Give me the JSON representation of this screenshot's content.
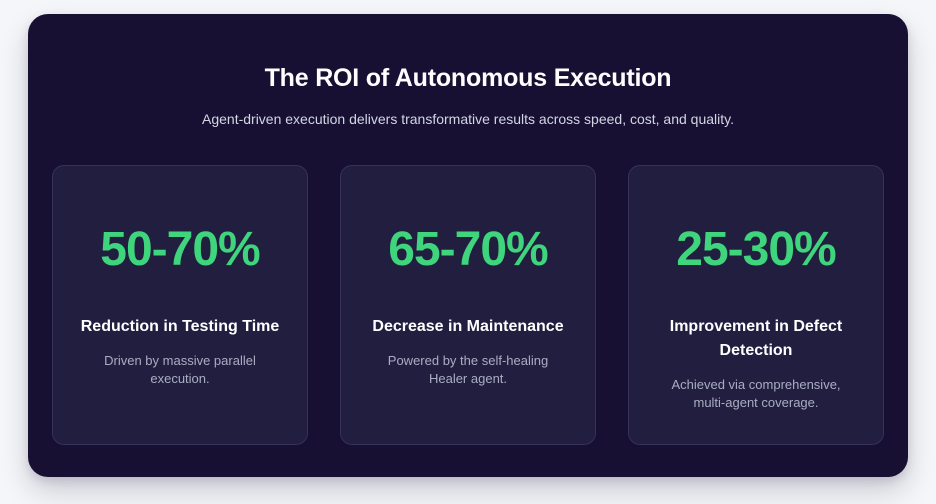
{
  "theme": {
    "page_background": "#f5f6f9",
    "panel_background": "#171033",
    "card_background": "#221e40",
    "card_border": "#37325a",
    "accent_green": "#3ed57c",
    "title_color": "#ffffff",
    "subtitle_color": "#d3d6e2",
    "body_color": "#a9adc2"
  },
  "header": {
    "title": "The ROI of Autonomous Execution",
    "subtitle": "Agent-driven execution delivers transformative results across speed, cost, and quality."
  },
  "stats": [
    {
      "value": "50-70%",
      "label": "Reduction in Testing Time",
      "description": "Driven by massive parallel execution."
    },
    {
      "value": "65-70%",
      "label": "Decrease in Maintenance",
      "description": "Powered by the self-healing Healer agent."
    },
    {
      "value": "25-30%",
      "label": "Improvement in Defect Detection",
      "description": "Achieved via comprehensive, multi-agent coverage."
    }
  ]
}
